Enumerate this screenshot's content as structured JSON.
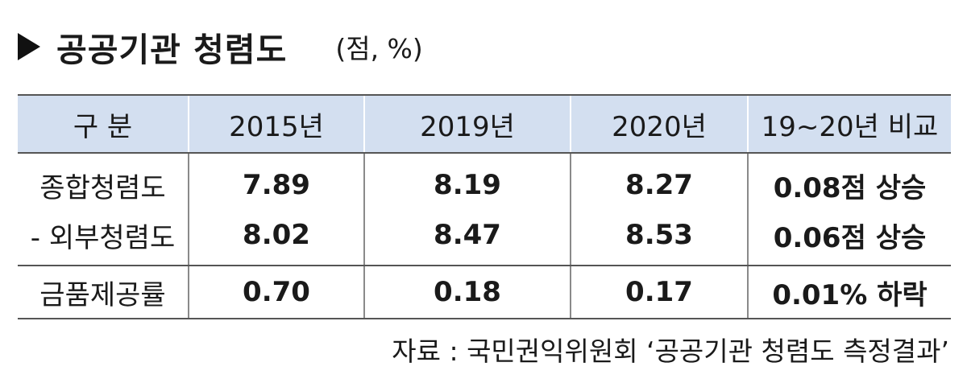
{
  "title": "공공기관 청렴도",
  "unit": "(점, %)",
  "table": {
    "headers": [
      "구 분",
      "2015년",
      "2019년",
      "2020년",
      "19~20년 비교"
    ],
    "rows": [
      [
        "종합청렴도",
        "7.89",
        "8.19",
        "8.27",
        "0.08점 상승"
      ],
      [
        "- 외부청렴도",
        "8.02",
        "8.47",
        "8.53",
        "0.06점 상승"
      ],
      [
        "금품제공률",
        "0.70",
        "0.18",
        "0.17",
        "0.01% 하락"
      ]
    ]
  },
  "source": "자료 : 국민권익위원회 ‘공공기관 청렴도 측정결과’"
}
